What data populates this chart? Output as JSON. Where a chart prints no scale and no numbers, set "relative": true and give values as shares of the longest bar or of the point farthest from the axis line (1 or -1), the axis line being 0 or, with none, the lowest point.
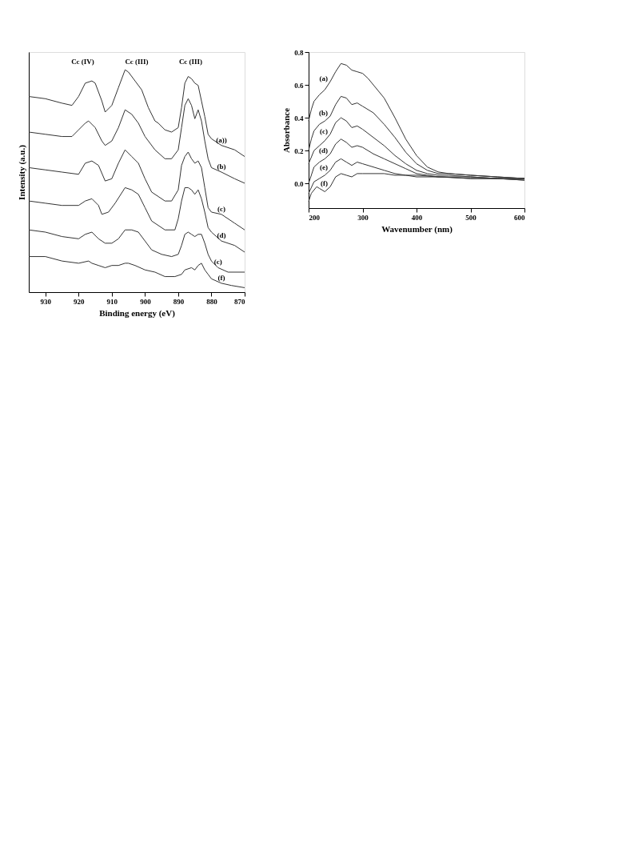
{
  "chart_data": [
    {
      "type": "line",
      "relative": true,
      "xlabel": "Binding energy (eV)",
      "ylabel": "Intensity (a.u.)",
      "xlim": [
        935,
        870
      ],
      "xticks": [
        930,
        920,
        910,
        900,
        890,
        880,
        870
      ],
      "tick_labels": "x",
      "grid": false,
      "legend": false,
      "marker": "none",
      "line_style": "solid",
      "annotations": [
        "Cc (IV)",
        "Cc (III)",
        "Cc (III)"
      ],
      "series": [
        {
          "name": "(a))",
          "color": "#333333",
          "x": [
            935,
            930,
            925,
            922,
            920,
            918,
            916,
            915,
            913,
            912,
            910,
            908,
            906,
            905,
            903,
            901,
            899,
            897,
            896,
            894,
            892,
            890,
            889,
            888,
            887,
            886,
            885,
            884,
            883,
            882,
            881,
            880,
            877,
            873,
            870
          ],
          "values": [
            0.88,
            0.87,
            0.85,
            0.84,
            0.88,
            0.94,
            0.95,
            0.94,
            0.86,
            0.81,
            0.84,
            0.92,
            1.0,
            0.99,
            0.95,
            0.91,
            0.83,
            0.77,
            0.76,
            0.73,
            0.72,
            0.74,
            0.83,
            0.94,
            0.97,
            0.96,
            0.94,
            0.93,
            0.86,
            0.79,
            0.71,
            0.69,
            0.66,
            0.64,
            0.61
          ]
        },
        {
          "name": "(b)",
          "color": "#333333",
          "x": [
            935,
            930,
            925,
            922,
            920,
            918,
            917,
            915,
            913,
            912,
            910,
            908,
            906,
            904,
            902,
            900,
            897,
            894,
            892,
            890,
            889,
            888,
            887,
            886,
            885,
            884,
            883,
            882,
            881,
            880,
            877,
            873,
            870
          ],
          "values": [
            0.72,
            0.71,
            0.7,
            0.7,
            0.73,
            0.76,
            0.77,
            0.74,
            0.68,
            0.66,
            0.68,
            0.74,
            0.82,
            0.8,
            0.76,
            0.7,
            0.64,
            0.6,
            0.6,
            0.64,
            0.74,
            0.84,
            0.87,
            0.84,
            0.78,
            0.82,
            0.77,
            0.68,
            0.6,
            0.56,
            0.54,
            0.51,
            0.49
          ]
        },
        {
          "name": "(c)",
          "color": "#333333",
          "x": [
            935,
            930,
            925,
            920,
            918,
            916,
            914,
            912,
            910,
            908,
            906,
            904,
            902,
            900,
            898,
            896,
            894,
            892,
            890,
            889,
            888,
            887,
            886,
            885,
            884,
            883,
            882,
            881,
            880,
            877,
            873,
            870
          ],
          "values": [
            0.56,
            0.55,
            0.54,
            0.53,
            0.58,
            0.59,
            0.57,
            0.5,
            0.51,
            0.58,
            0.64,
            0.61,
            0.58,
            0.51,
            0.45,
            0.43,
            0.41,
            0.41,
            0.46,
            0.57,
            0.61,
            0.63,
            0.6,
            0.58,
            0.59,
            0.56,
            0.47,
            0.38,
            0.36,
            0.35,
            0.31,
            0.28
          ]
        },
        {
          "name": "(d)",
          "color": "#333333",
          "x": [
            935,
            930,
            925,
            920,
            918,
            916,
            914,
            913,
            911,
            909,
            906,
            904,
            902,
            900,
            898,
            896,
            894,
            891,
            890,
            889,
            888,
            887,
            886,
            885,
            884,
            883,
            882,
            881,
            880,
            877,
            873,
            870
          ],
          "values": [
            0.41,
            0.4,
            0.39,
            0.39,
            0.41,
            0.42,
            0.39,
            0.35,
            0.36,
            0.4,
            0.47,
            0.46,
            0.44,
            0.38,
            0.32,
            0.3,
            0.28,
            0.28,
            0.33,
            0.41,
            0.47,
            0.47,
            0.46,
            0.44,
            0.46,
            0.42,
            0.36,
            0.29,
            0.27,
            0.23,
            0.21,
            0.18
          ]
        },
        {
          "name": "(c)",
          "color": "#333333",
          "x": [
            935,
            930,
            925,
            920,
            918,
            916,
            914,
            912,
            910,
            908,
            906,
            904,
            902,
            900,
            898,
            895,
            892,
            890,
            889,
            888,
            887,
            886,
            885,
            884,
            883,
            882,
            881,
            880,
            878,
            875,
            870
          ],
          "values": [
            0.28,
            0.27,
            0.25,
            0.24,
            0.26,
            0.27,
            0.24,
            0.22,
            0.22,
            0.24,
            0.28,
            0.28,
            0.27,
            0.23,
            0.19,
            0.17,
            0.16,
            0.17,
            0.21,
            0.26,
            0.27,
            0.26,
            0.25,
            0.26,
            0.26,
            0.22,
            0.17,
            0.14,
            0.11,
            0.09,
            0.09
          ]
        },
        {
          "name": "(f)",
          "color": "#333333",
          "x": [
            935,
            930,
            925,
            920,
            917,
            916,
            914,
            912,
            910,
            908,
            906,
            905,
            903,
            900,
            897,
            894,
            891,
            889,
            888,
            886,
            885,
            884,
            883,
            882,
            881,
            880,
            877,
            874,
            870
          ],
          "values": [
            0.16,
            0.16,
            0.14,
            0.13,
            0.14,
            0.13,
            0.12,
            0.11,
            0.12,
            0.12,
            0.13,
            0.13,
            0.12,
            0.1,
            0.09,
            0.07,
            0.07,
            0.08,
            0.1,
            0.11,
            0.1,
            0.12,
            0.13,
            0.1,
            0.08,
            0.06,
            0.04,
            0.03,
            0.02
          ]
        }
      ]
    },
    {
      "type": "line",
      "xlabel": "Wavenumber (nm)",
      "ylabel": "Absorbance",
      "xlim": [
        200,
        600
      ],
      "ylim": [
        -0.15,
        0.8
      ],
      "xticks": [
        200,
        300,
        400,
        500,
        600
      ],
      "yticks": [
        {
          "value": 0,
          "label": "0.0"
        },
        0.2,
        0.4,
        0.6,
        0.8
      ],
      "grid": false,
      "legend": false,
      "marker": "none",
      "line_style": "solid",
      "series": [
        {
          "name": "(a)",
          "color": "#333333",
          "x": [
            200,
            205,
            210,
            220,
            230,
            240,
            250,
            260,
            270,
            280,
            290,
            300,
            310,
            320,
            340,
            360,
            380,
            400,
            420,
            440,
            460,
            500,
            550,
            600
          ],
          "values": [
            0.38,
            0.45,
            0.5,
            0.54,
            0.57,
            0.62,
            0.68,
            0.73,
            0.72,
            0.69,
            0.68,
            0.67,
            0.64,
            0.6,
            0.52,
            0.4,
            0.27,
            0.17,
            0.1,
            0.07,
            0.06,
            0.05,
            0.04,
            0.03
          ]
        },
        {
          "name": "(b)",
          "color": "#333333",
          "x": [
            200,
            205,
            210,
            220,
            230,
            240,
            250,
            260,
            270,
            280,
            290,
            300,
            320,
            340,
            360,
            380,
            400,
            420,
            440,
            460,
            500,
            550,
            600
          ],
          "values": [
            0.2,
            0.27,
            0.32,
            0.36,
            0.38,
            0.41,
            0.48,
            0.53,
            0.52,
            0.48,
            0.49,
            0.47,
            0.43,
            0.36,
            0.28,
            0.19,
            0.12,
            0.08,
            0.06,
            0.06,
            0.05,
            0.04,
            0.03
          ]
        },
        {
          "name": "(c)",
          "color": "#333333",
          "x": [
            200,
            210,
            220,
            230,
            240,
            250,
            260,
            270,
            280,
            290,
            300,
            320,
            340,
            360,
            380,
            400,
            420,
            440,
            460,
            500,
            550,
            600
          ],
          "values": [
            0.12,
            0.2,
            0.23,
            0.26,
            0.3,
            0.37,
            0.4,
            0.38,
            0.34,
            0.35,
            0.33,
            0.28,
            0.23,
            0.17,
            0.12,
            0.08,
            0.06,
            0.05,
            0.05,
            0.04,
            0.03,
            0.03
          ]
        },
        {
          "name": "(d)",
          "color": "#333333",
          "x": [
            200,
            210,
            220,
            230,
            240,
            250,
            260,
            270,
            280,
            290,
            300,
            320,
            340,
            360,
            380,
            400,
            420,
            440,
            500,
            550,
            600
          ],
          "values": [
            0.0,
            0.1,
            0.13,
            0.15,
            0.18,
            0.24,
            0.27,
            0.25,
            0.22,
            0.23,
            0.22,
            0.18,
            0.15,
            0.12,
            0.09,
            0.06,
            0.05,
            0.04,
            0.04,
            0.03,
            0.03
          ]
        },
        {
          "name": "(e)",
          "color": "#333333",
          "x": [
            200,
            210,
            220,
            230,
            240,
            250,
            260,
            270,
            280,
            290,
            300,
            320,
            340,
            360,
            380,
            400,
            440,
            500,
            550,
            600
          ],
          "values": [
            -0.06,
            0.01,
            0.03,
            0.05,
            0.08,
            0.13,
            0.15,
            0.13,
            0.11,
            0.13,
            0.12,
            0.1,
            0.08,
            0.06,
            0.05,
            0.05,
            0.04,
            0.03,
            0.03,
            0.02
          ]
        },
        {
          "name": "(f)",
          "color": "#333333",
          "x": [
            200,
            205,
            215,
            220,
            230,
            240,
            250,
            260,
            270,
            280,
            290,
            300,
            320,
            340,
            360,
            380,
            400,
            450,
            500,
            550,
            600
          ],
          "values": [
            -0.11,
            -0.06,
            -0.02,
            -0.03,
            -0.05,
            -0.02,
            0.04,
            0.06,
            0.05,
            0.04,
            0.06,
            0.06,
            0.06,
            0.06,
            0.05,
            0.05,
            0.04,
            0.04,
            0.03,
            0.03,
            0.02
          ]
        }
      ]
    }
  ]
}
